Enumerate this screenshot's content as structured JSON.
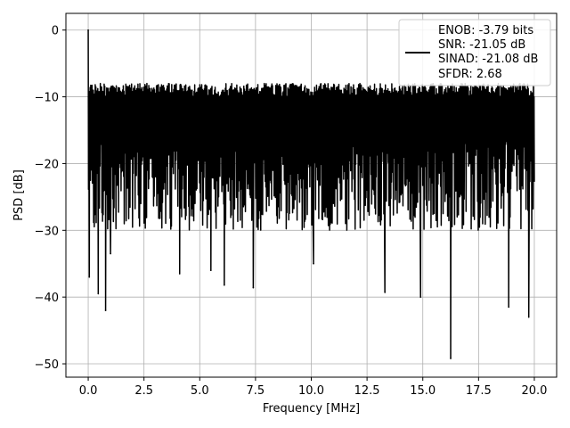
{
  "chart_data": {
    "type": "line",
    "title": "",
    "xlabel": "Frequency [MHz]",
    "ylabel": "PSD [dB]",
    "xlim": [
      -1.0,
      21.0
    ],
    "ylim": [
      -52.0,
      2.5
    ],
    "xticks": [
      0.0,
      2.5,
      5.0,
      7.5,
      10.0,
      12.5,
      15.0,
      17.5,
      20.0
    ],
    "xtick_labels": [
      "0.0",
      "2.5",
      "5.0",
      "7.5",
      "10.0",
      "12.5",
      "15.0",
      "17.5",
      "20.0"
    ],
    "yticks": [
      0,
      -10,
      -20,
      -30,
      -40,
      -50
    ],
    "ytick_labels": [
      "0",
      "−10",
      "−20",
      "−30",
      "−40",
      "−50"
    ],
    "grid": true,
    "legend_position": "top-right",
    "series_color": "#000000",
    "series": [
      {
        "legend_lines": [
          "ENOB: -3.79 bits",
          "SNR: -21.05 dB",
          "SINAD: -21.08 dB",
          "SFDR: 2.68"
        ],
        "x_range": [
          0.0,
          20.0
        ],
        "baseline_db": -16.0,
        "upper_envelope_db": -8.0,
        "typical_lower_db": -27.0,
        "peak": {
          "x": 0.0,
          "y": 0.0
        },
        "notable_dips": [
          {
            "x": 0.05,
            "y": -37.0
          },
          {
            "x": 0.45,
            "y": -39.5
          },
          {
            "x": 0.78,
            "y": -42.0
          },
          {
            "x": 1.0,
            "y": -33.5
          },
          {
            "x": 4.1,
            "y": -36.5
          },
          {
            "x": 5.5,
            "y": -36.0
          },
          {
            "x": 6.1,
            "y": -38.2
          },
          {
            "x": 7.4,
            "y": -38.6
          },
          {
            "x": 10.1,
            "y": -35.0
          },
          {
            "x": 13.3,
            "y": -39.3
          },
          {
            "x": 14.9,
            "y": -40.0
          },
          {
            "x": 16.25,
            "y": -49.2
          },
          {
            "x": 18.85,
            "y": -41.5
          },
          {
            "x": 19.75,
            "y": -43.0
          }
        ]
      }
    ]
  }
}
